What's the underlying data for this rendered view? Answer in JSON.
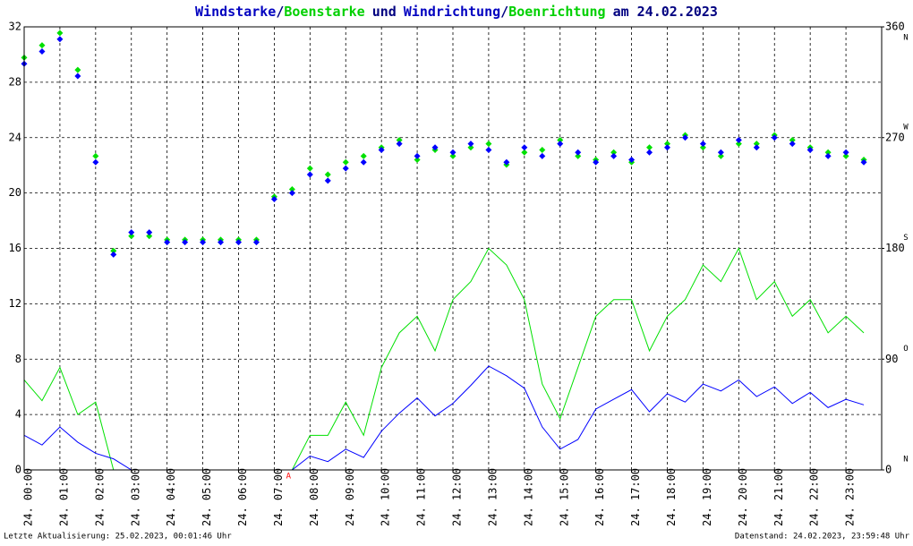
{
  "chart_data": {
    "type": "line",
    "title_parts": [
      "/",
      "und",
      "/",
      "am 24.02.2023"
    ],
    "footer_left": "Letzte Aktualisierung: 25.02.2023, 00:01:46 Uhr",
    "footer_right": "Datenstand: 24.02.2023, 23:59:48 Uhr",
    "annotation": {
      "x": 7.4,
      "label": "A",
      "color": "#ff0000"
    },
    "grid": true,
    "x": [
      0,
      0.5,
      1,
      1.5,
      2,
      2.5,
      3,
      3.5,
      4,
      4.5,
      5,
      5.5,
      6,
      6.5,
      7,
      7.5,
      8,
      8.5,
      9,
      9.5,
      10,
      10.5,
      11,
      11.5,
      12,
      12.5,
      13,
      13.5,
      14,
      14.5,
      15,
      15.5,
      16,
      16.5,
      17,
      17.5,
      18,
      18.5,
      19,
      19.5,
      20,
      20.5,
      21,
      21.5,
      22,
      22.5,
      23,
      23.5
    ],
    "xlim": [
      0,
      24
    ],
    "xticks": [
      {
        "value": 0,
        "label": "24. 00:00"
      },
      {
        "value": 1,
        "label": "24. 01:00"
      },
      {
        "value": 2,
        "label": "24. 02:00"
      },
      {
        "value": 3,
        "label": "24. 03:00"
      },
      {
        "value": 4,
        "label": "24. 04:00"
      },
      {
        "value": 5,
        "label": "24. 05:00"
      },
      {
        "value": 6,
        "label": "24. 06:00"
      },
      {
        "value": 7,
        "label": "24. 07:00"
      },
      {
        "value": 8,
        "label": "24. 08:00"
      },
      {
        "value": 9,
        "label": "24. 09:00"
      },
      {
        "value": 10,
        "label": "24. 10:00"
      },
      {
        "value": 11,
        "label": "24. 11:00"
      },
      {
        "value": 12,
        "label": "24. 12:00"
      },
      {
        "value": 13,
        "label": "24. 13:00"
      },
      {
        "value": 14,
        "label": "24. 14:00"
      },
      {
        "value": 15,
        "label": "24. 15:00"
      },
      {
        "value": 16,
        "label": "24. 16:00"
      },
      {
        "value": 17,
        "label": "24. 17:00"
      },
      {
        "value": 18,
        "label": "24. 18:00"
      },
      {
        "value": 19,
        "label": "24. 19:00"
      },
      {
        "value": 20,
        "label": "24. 20:00"
      },
      {
        "value": 21,
        "label": "24. 21:00"
      },
      {
        "value": 22,
        "label": "24. 22:00"
      },
      {
        "value": 23,
        "label": "24. 23:00"
      }
    ],
    "ylim": [
      0,
      32
    ],
    "yticks": [
      0,
      4,
      8,
      12,
      16,
      20,
      24,
      28,
      32
    ],
    "y2lim": [
      0,
      360
    ],
    "y2ticks": [
      0,
      90,
      180,
      270,
      360
    ],
    "y2_compass": [
      {
        "value": 0,
        "label": "N"
      },
      {
        "value": 90,
        "label": "O"
      },
      {
        "value": 180,
        "label": "S"
      },
      {
        "value": 270,
        "label": "W"
      },
      {
        "value": 360,
        "label": "N"
      }
    ],
    "series": [
      {
        "name": "Windstarke",
        "color": "#0000ff",
        "kind": "line",
        "values": [
          2.5,
          1.8,
          3.1,
          2.0,
          1.2,
          0.8,
          0,
          0,
          0,
          0,
          0,
          0,
          0,
          0,
          0,
          0,
          1.0,
          0.6,
          1.5,
          0.9,
          2.8,
          4.1,
          5.2,
          3.9,
          4.8,
          6.1,
          7.5,
          6.8,
          5.9,
          3.1,
          1.5,
          2.2,
          4.4,
          5.1,
          5.8,
          4.2,
          5.5,
          4.9,
          6.2,
          5.7,
          6.5,
          5.3,
          6.0,
          4.8,
          5.6,
          4.5,
          5.1,
          4.7
        ]
      },
      {
        "name": "Boenstarke",
        "color": "#00e000",
        "kind": "line",
        "values": [
          6.5,
          5.0,
          7.4,
          4.0,
          4.9,
          0,
          0,
          0,
          0,
          0,
          0,
          0,
          0,
          0,
          0,
          0,
          2.5,
          2.5,
          4.9,
          2.5,
          7.4,
          9.9,
          11.1,
          8.6,
          12.3,
          13.6,
          16.0,
          14.8,
          12.3,
          6.2,
          3.7,
          7.4,
          11.1,
          12.3,
          12.3,
          8.6,
          11.1,
          12.3,
          14.8,
          13.6,
          16.0,
          12.3,
          13.6,
          11.1,
          12.3,
          9.9,
          11.1,
          9.9
        ]
      },
      {
        "name": "Windrichtung",
        "color": "#0000ff",
        "kind": "scatter",
        "axis": "y2",
        "values": [
          330,
          340,
          350,
          320,
          250,
          175,
          193,
          193,
          185,
          185,
          185,
          185,
          185,
          185,
          220,
          225,
          240,
          235,
          245,
          250,
          260,
          265,
          255,
          262,
          258,
          265,
          260,
          250,
          262,
          255,
          265,
          258,
          250,
          255,
          252,
          258,
          262,
          270,
          265,
          258,
          268,
          262,
          270,
          265,
          260,
          255,
          258,
          250
        ]
      },
      {
        "name": "Boenrichtung",
        "color": "#00e000",
        "kind": "scatter",
        "axis": "y2",
        "values": [
          335,
          345,
          355,
          325,
          255,
          178,
          190,
          190,
          187,
          187,
          187,
          187,
          187,
          187,
          222,
          228,
          245,
          240,
          250,
          255,
          262,
          268,
          252,
          260,
          255,
          262,
          265,
          248,
          258,
          260,
          268,
          255,
          252,
          258,
          250,
          262,
          265,
          272,
          262,
          255,
          265,
          265,
          272,
          268,
          262,
          258,
          255,
          252
        ]
      }
    ]
  }
}
